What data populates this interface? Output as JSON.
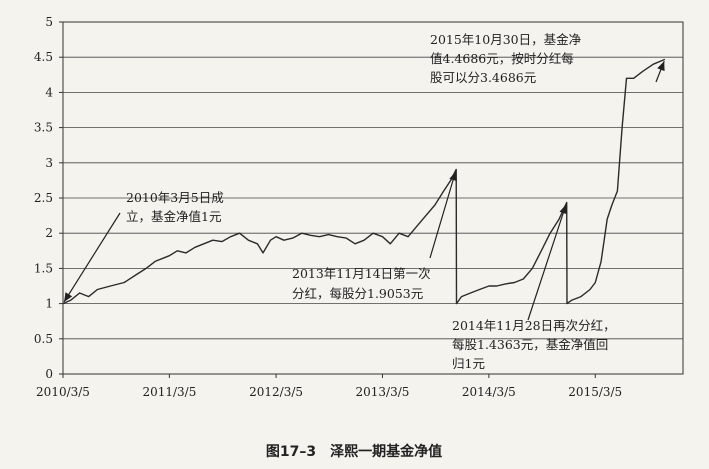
{
  "caption": "图17–3　泽熙一期基金净值",
  "chart_data": {
    "type": "line",
    "title": "",
    "xlabel": "",
    "ylabel": "",
    "ylim": [
      0,
      5
    ],
    "yticks": [
      0,
      0.5,
      1,
      1.5,
      2,
      2.5,
      3,
      3.5,
      4,
      4.5,
      5
    ],
    "ytick_labels": [
      "0",
      "0.5",
      "1",
      "1.5",
      "2",
      "2.5",
      "3",
      "3.5",
      "4",
      "4.5",
      "5"
    ],
    "xlim": [
      "2010-03-05",
      "2015-12-31"
    ],
    "xticks": [
      "2010-03-05",
      "2011-03-05",
      "2012-03-05",
      "2013-03-05",
      "2014-03-05",
      "2015-03-05"
    ],
    "xtick_labels": [
      "2010/3/5",
      "2011/3/5",
      "2012/3/5",
      "2013/3/5",
      "2014/3/5",
      "2015/3/5"
    ],
    "grid": "horizontal",
    "line_color": "#2b2b2b",
    "series": [
      {
        "points": [
          [
            "2010-03-05",
            1.0
          ],
          [
            "2010-04-01",
            1.05
          ],
          [
            "2010-05-01",
            1.15
          ],
          [
            "2010-06-01",
            1.1
          ],
          [
            "2010-07-01",
            1.2
          ],
          [
            "2010-08-15",
            1.25
          ],
          [
            "2010-10-01",
            1.3
          ],
          [
            "2010-11-15",
            1.42
          ],
          [
            "2010-12-15",
            1.5
          ],
          [
            "2011-01-15",
            1.6
          ],
          [
            "2011-02-15",
            1.65
          ],
          [
            "2011-03-05",
            1.68
          ],
          [
            "2011-04-01",
            1.75
          ],
          [
            "2011-05-01",
            1.72
          ],
          [
            "2011-06-01",
            1.8
          ],
          [
            "2011-07-01",
            1.85
          ],
          [
            "2011-08-01",
            1.9
          ],
          [
            "2011-09-01",
            1.88
          ],
          [
            "2011-10-01",
            1.95
          ],
          [
            "2011-11-01",
            2.0
          ],
          [
            "2011-12-01",
            1.9
          ],
          [
            "2012-01-01",
            1.85
          ],
          [
            "2012-01-20",
            1.72
          ],
          [
            "2012-02-15",
            1.9
          ],
          [
            "2012-03-05",
            1.95
          ],
          [
            "2012-04-01",
            1.9
          ],
          [
            "2012-05-01",
            1.93
          ],
          [
            "2012-06-01",
            2.0
          ],
          [
            "2012-07-01",
            1.97
          ],
          [
            "2012-08-01",
            1.95
          ],
          [
            "2012-09-01",
            1.98
          ],
          [
            "2012-10-01",
            1.95
          ],
          [
            "2012-11-01",
            1.93
          ],
          [
            "2012-12-01",
            1.85
          ],
          [
            "2013-01-01",
            1.9
          ],
          [
            "2013-02-01",
            2.0
          ],
          [
            "2013-03-05",
            1.95
          ],
          [
            "2013-04-01",
            1.85
          ],
          [
            "2013-05-01",
            2.0
          ],
          [
            "2013-06-01",
            1.95
          ],
          [
            "2013-07-01",
            2.1
          ],
          [
            "2013-08-01",
            2.25
          ],
          [
            "2013-09-01",
            2.4
          ],
          [
            "2013-10-01",
            2.6
          ],
          [
            "2013-10-25",
            2.75
          ],
          [
            "2013-11-13",
            2.9053
          ],
          [
            "2013-11-14",
            1.0
          ],
          [
            "2013-12-01",
            1.1
          ],
          [
            "2014-01-01",
            1.15
          ],
          [
            "2014-02-01",
            1.2
          ],
          [
            "2014-03-05",
            1.25
          ],
          [
            "2014-04-01",
            1.25
          ],
          [
            "2014-05-01",
            1.28
          ],
          [
            "2014-06-01",
            1.3
          ],
          [
            "2014-07-01",
            1.35
          ],
          [
            "2014-08-01",
            1.5
          ],
          [
            "2014-09-01",
            1.75
          ],
          [
            "2014-10-01",
            2.0
          ],
          [
            "2014-11-01",
            2.2
          ],
          [
            "2014-11-27",
            2.4363
          ],
          [
            "2014-11-28",
            1.0
          ],
          [
            "2014-12-15",
            1.05
          ],
          [
            "2015-01-15",
            1.1
          ],
          [
            "2015-02-15",
            1.2
          ],
          [
            "2015-03-05",
            1.3
          ],
          [
            "2015-03-25",
            1.6
          ],
          [
            "2015-04-15",
            2.2
          ],
          [
            "2015-05-01",
            2.4
          ],
          [
            "2015-05-20",
            2.6
          ],
          [
            "2015-06-05",
            3.5
          ],
          [
            "2015-06-20",
            4.2
          ],
          [
            "2015-07-15",
            4.2
          ],
          [
            "2015-08-15",
            4.3
          ],
          [
            "2015-09-20",
            4.4
          ],
          [
            "2015-10-30",
            4.4686
          ]
        ]
      }
    ],
    "annotations": [
      {
        "lines": [
          "2010年3月5日成",
          "立，基金净值1元"
        ],
        "target": [
          "2010-03-05",
          1.0
        ]
      },
      {
        "lines": [
          "2013年11月14日第一次",
          "分红，每股分1.9053元"
        ],
        "target": [
          "2013-11-13",
          2.9053
        ]
      },
      {
        "lines": [
          "2014年11月28日再次分红，",
          "每股1.4363元，基金净值回",
          "归1元"
        ],
        "target": [
          "2014-11-27",
          2.4363
        ]
      },
      {
        "lines": [
          "2015年10月30日，基金净",
          "值4.4686元，按时分红每",
          "股可以分3.4686元"
        ],
        "target": [
          "2015-10-30",
          4.4686
        ]
      }
    ]
  }
}
